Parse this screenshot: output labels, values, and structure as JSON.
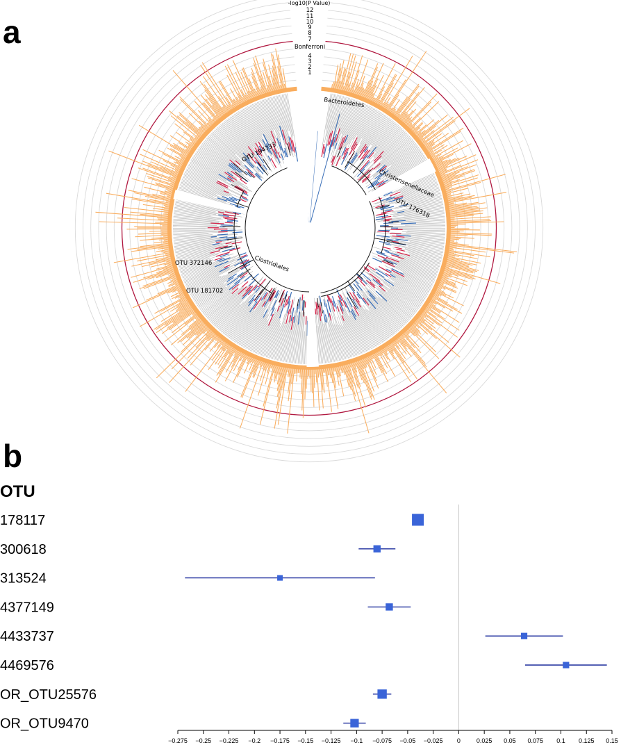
{
  "panels": {
    "a": "a",
    "b": "b"
  },
  "chart_data": [
    {
      "type": "circular-tree",
      "axis_title": "-log10(P Value)",
      "ring_values": [
        "12",
        "11",
        "10",
        "9",
        "8",
        "7",
        "Bonferroni",
        "4",
        "3",
        "2",
        "1"
      ],
      "threshold_label": "Bonferroni",
      "clade_labels": [
        "Bacteroidetes",
        "Christensenellaceae",
        "OTU 176318",
        "OTU 194733",
        "OTU 372146",
        "OTU 181702",
        "Clostridiales"
      ],
      "colors": {
        "bars": "#f9ad5e",
        "threshold": "#b0173f",
        "rings": "#d9d9d9",
        "tree": "#9a9a9a",
        "negative": "#3a6fb8",
        "positive": "#d4244a"
      }
    },
    {
      "type": "forest",
      "header": "OTU",
      "categories": [
        "178117",
        "300618",
        "313524",
        "4377149",
        "4433737",
        "4469576",
        "OR_OTU25576",
        "OR_OTU9470"
      ],
      "estimates": [
        -0.04,
        -0.08,
        -0.175,
        -0.068,
        0.064,
        0.105,
        -0.075,
        -0.102
      ],
      "ci_low": [
        -0.04,
        -0.098,
        -0.268,
        -0.089,
        0.026,
        0.065,
        -0.084,
        -0.113
      ],
      "ci_high": [
        -0.04,
        -0.062,
        -0.082,
        -0.047,
        0.102,
        0.145,
        -0.066,
        -0.091
      ],
      "weights": [
        1.0,
        0.45,
        0.25,
        0.45,
        0.35,
        0.35,
        0.7,
        0.6
      ],
      "xlim": [
        -0.275,
        0.15
      ],
      "xticks": [
        "-0.275",
        "-0.25",
        "-0.225",
        "-0.2",
        "-0.175",
        "-0.15",
        "-0.125",
        "-0.1",
        "-0.075",
        "-0.05",
        "-0.025",
        "0",
        "0.025",
        "0.05",
        "0.075",
        "0.1",
        "0.125",
        "0.15"
      ],
      "reference_line": 0,
      "colors": {
        "ci": "#1c2c9c",
        "point": "#3a64d8",
        "reference": "#cfcfcf"
      }
    }
  ]
}
